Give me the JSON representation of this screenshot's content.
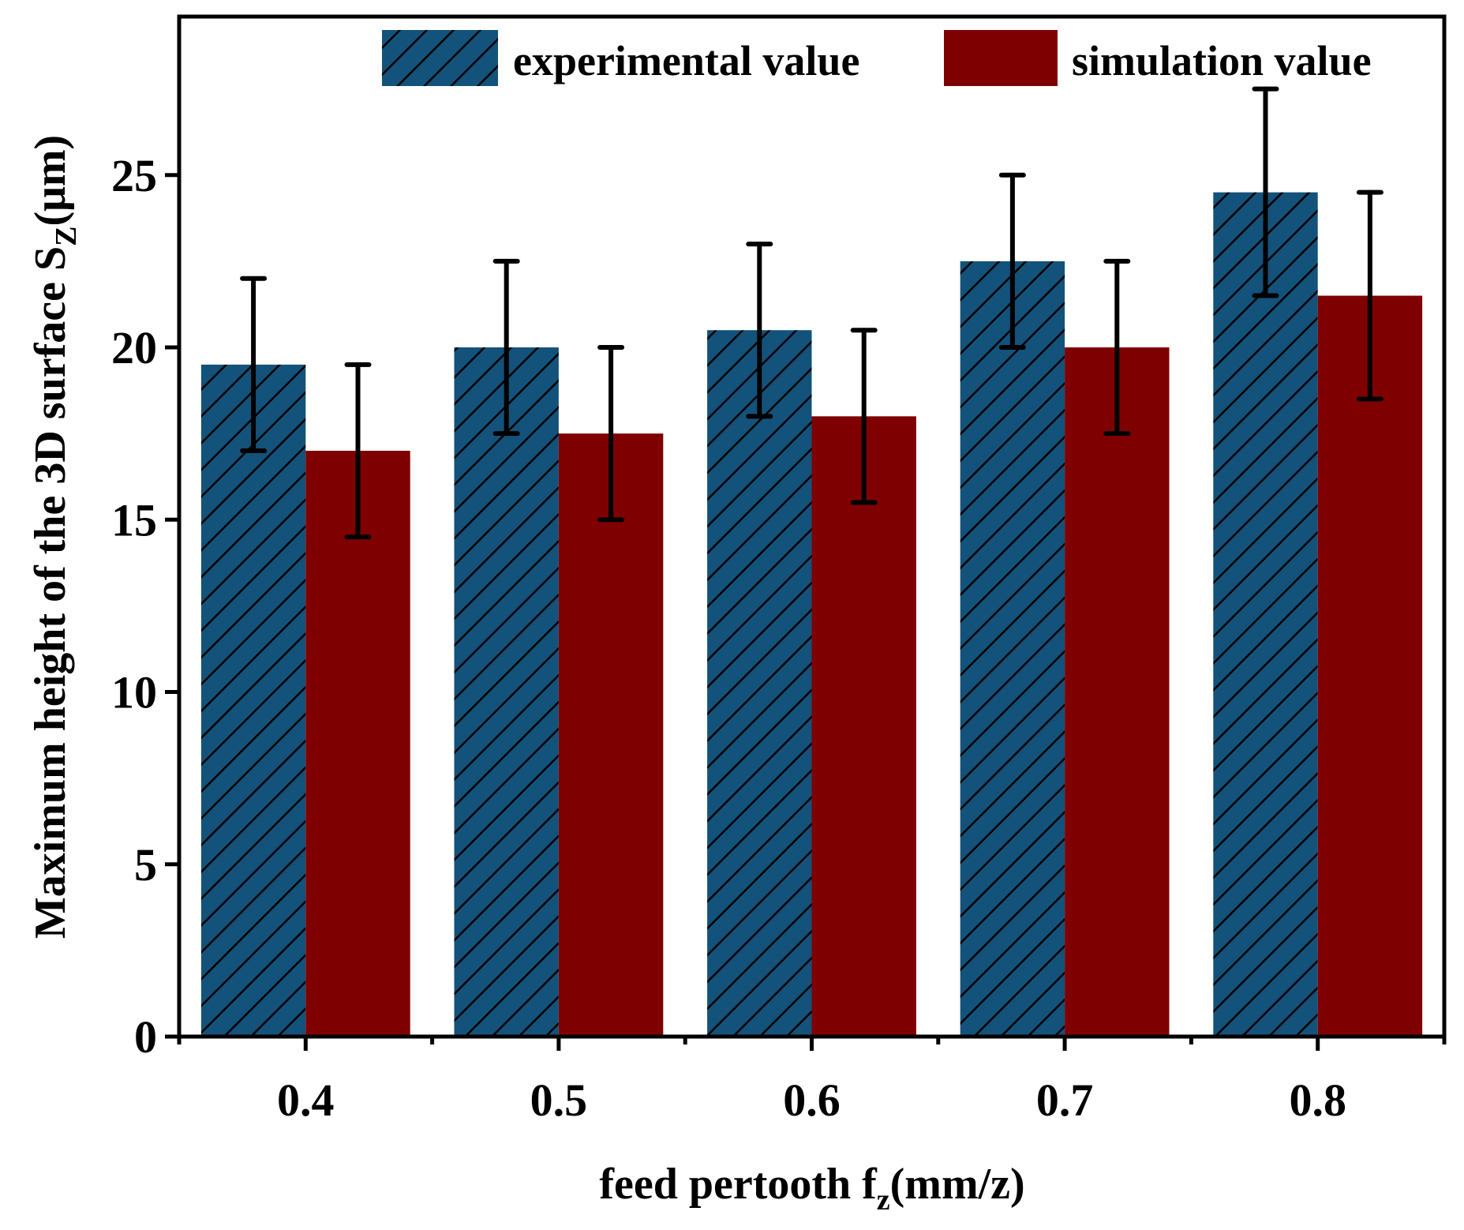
{
  "chart_data": {
    "type": "bar",
    "title": "",
    "xlabel": "feed  pertooth f",
    "xlabel_sub": "z",
    "xlabel_unit": "(mm/z)",
    "ylabel": "Maximum height of the 3D surface S",
    "ylabel_sub": "Z",
    "ylabel_unit": "(μm)",
    "categories": [
      "0.4",
      "0.5",
      "0.6",
      "0.7",
      "0.8"
    ],
    "x": [
      0.4,
      0.5,
      0.6,
      0.7,
      0.8
    ],
    "xlim": [
      0.35,
      0.85
    ],
    "ylim": [
      0,
      29.6
    ],
    "yticks": [
      0,
      5,
      10,
      15,
      20,
      25
    ],
    "grid": false,
    "legend_position": "top-right",
    "series": [
      {
        "name": "experimental value",
        "color": "#13527a",
        "hatch": "diagonal",
        "values": [
          19.5,
          20,
          20.5,
          22.5,
          24.5
        ],
        "error": [
          2.5,
          2.5,
          2.5,
          2.5,
          3
        ]
      },
      {
        "name": "simulation value",
        "color": "#7f0000",
        "hatch": "none",
        "values": [
          17,
          17.5,
          18,
          20,
          21.5
        ],
        "error": [
          2.5,
          2.5,
          2.5,
          2.5,
          3
        ]
      }
    ]
  }
}
